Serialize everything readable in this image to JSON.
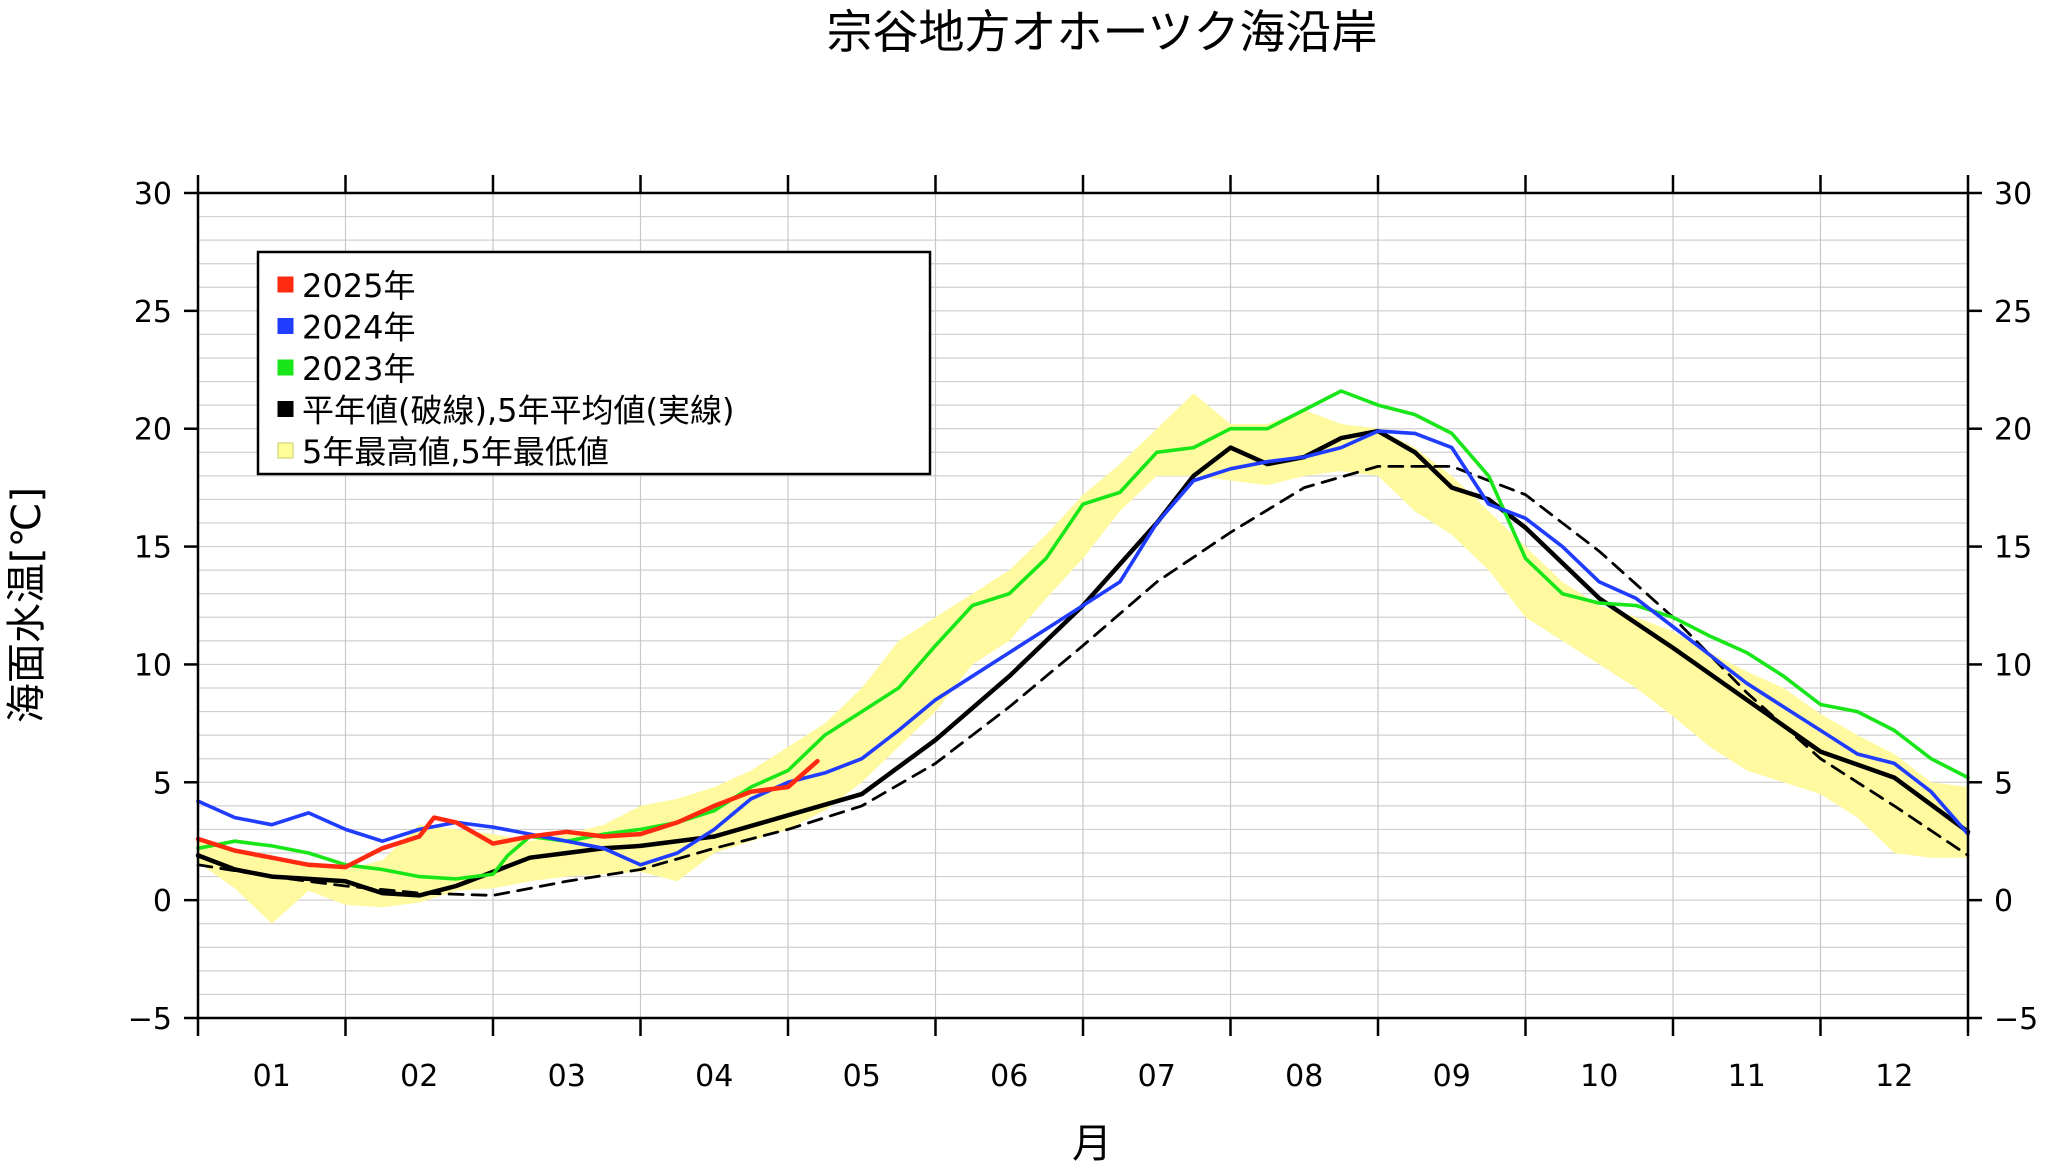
{
  "chart_data": {
    "type": "line",
    "title": "宗谷地方オホーツク海沿岸",
    "xlabel": "月",
    "ylabel": "海面水温[℃]",
    "ylim": [
      -5,
      30
    ],
    "y_ticks": [
      -5,
      0,
      5,
      10,
      15,
      20,
      25,
      30
    ],
    "y_tick_labels": [
      "−5",
      "0",
      "5",
      "10",
      "15",
      "20",
      "25",
      "30"
    ],
    "x_domain": [
      1,
      13
    ],
    "months": [
      "01",
      "02",
      "03",
      "04",
      "05",
      "06",
      "07",
      "08",
      "09",
      "10",
      "11",
      "12"
    ],
    "grid": true,
    "legend_position": "top-left",
    "legend": [
      {
        "label": "2025年",
        "color": "#ff2a10"
      },
      {
        "label": "2024年",
        "color": "#1f3cff"
      },
      {
        "label": "2023年",
        "color": "#19e619"
      },
      {
        "label": "平年値(破線),5年平均値(実線)",
        "color": "#000000"
      },
      {
        "label": "5年最高値,5年最低値",
        "color": "#ffff99"
      }
    ],
    "band": {
      "name": "5年最高値,5年最低値",
      "color": "#fffaa0",
      "x": [
        1.0,
        1.25,
        1.5,
        1.75,
        2.0,
        2.25,
        2.5,
        2.75,
        3.0,
        3.25,
        3.5,
        3.75,
        4.0,
        4.25,
        4.5,
        4.75,
        5.0,
        5.25,
        5.5,
        5.75,
        6.0,
        6.25,
        6.5,
        6.75,
        7.0,
        7.25,
        7.5,
        7.75,
        8.0,
        8.25,
        8.5,
        8.75,
        9.0,
        9.25,
        9.5,
        9.75,
        10.0,
        10.25,
        10.5,
        10.75,
        11.0,
        11.25,
        11.5,
        11.75,
        12.0,
        12.25,
        12.5,
        12.75,
        13.0
      ],
      "high": [
        2.6,
        2.0,
        1.8,
        1.6,
        1.3,
        1.7,
        3.2,
        3.0,
        2.8,
        2.5,
        2.8,
        3.2,
        4.0,
        4.3,
        4.8,
        5.5,
        6.5,
        7.5,
        9.0,
        11.0,
        12.0,
        13.0,
        14.0,
        15.5,
        17.2,
        18.5,
        20.0,
        21.5,
        20.2,
        20.2,
        20.8,
        20.2,
        20.0,
        19.2,
        18.0,
        16.5,
        15.0,
        13.5,
        12.5,
        12.0,
        11.4,
        10.5,
        9.7,
        9.0,
        7.9,
        7.0,
        6.2,
        5.0,
        4.8
      ],
      "low": [
        1.6,
        0.5,
        -1.0,
        0.4,
        -0.2,
        -0.3,
        -0.1,
        0.4,
        0.5,
        0.8,
        1.0,
        1.1,
        1.2,
        0.8,
        2.0,
        2.5,
        3.0,
        3.8,
        5.0,
        6.5,
        8.0,
        10.0,
        11.0,
        12.8,
        14.5,
        16.5,
        18.0,
        18.0,
        17.8,
        17.6,
        18.0,
        18.2,
        18.0,
        16.5,
        15.5,
        14.0,
        12.0,
        11.0,
        10.0,
        9.0,
        7.8,
        6.5,
        5.5,
        5.0,
        4.5,
        3.5,
        2.0,
        1.8,
        1.8
      ]
    },
    "series": [
      {
        "name": "平年値(破線)",
        "color": "#000000",
        "dash": true,
        "x": [
          1.0,
          1.5,
          2.0,
          2.5,
          3.0,
          3.5,
          4.0,
          4.5,
          5.0,
          5.5,
          6.0,
          6.5,
          7.0,
          7.5,
          8.0,
          8.5,
          9.0,
          9.5,
          10.0,
          10.5,
          11.0,
          11.5,
          12.0,
          12.5,
          13.0
        ],
        "y": [
          1.5,
          1.0,
          0.6,
          0.3,
          0.2,
          0.8,
          1.3,
          2.2,
          3.0,
          4.0,
          5.8,
          8.2,
          10.8,
          13.5,
          15.6,
          17.5,
          18.4,
          18.4,
          17.2,
          14.8,
          12.0,
          8.8,
          6.0,
          4.0,
          1.9
        ]
      },
      {
        "name": "5年平均値(実線)",
        "color": "#000000",
        "dash": false,
        "x": [
          1.0,
          1.25,
          1.5,
          1.75,
          2.0,
          2.25,
          2.5,
          2.75,
          3.0,
          3.25,
          3.5,
          3.75,
          4.0,
          4.5,
          5.0,
          5.5,
          6.0,
          6.5,
          7.0,
          7.5,
          7.75,
          8.0,
          8.25,
          8.5,
          8.75,
          9.0,
          9.25,
          9.5,
          9.75,
          10.0,
          10.5,
          11.0,
          11.5,
          12.0,
          12.5,
          13.0
        ],
        "y": [
          1.9,
          1.3,
          1.0,
          0.9,
          0.8,
          0.3,
          0.2,
          0.6,
          1.2,
          1.8,
          2.0,
          2.2,
          2.3,
          2.7,
          3.6,
          4.5,
          6.8,
          9.5,
          12.5,
          16.0,
          18.0,
          19.2,
          18.5,
          18.8,
          19.6,
          19.9,
          19.0,
          17.5,
          17.0,
          15.8,
          12.8,
          10.7,
          8.5,
          6.3,
          5.2,
          2.9
        ]
      },
      {
        "name": "2023年",
        "color": "#19e619",
        "dash": false,
        "x": [
          1.0,
          1.25,
          1.5,
          1.75,
          2.0,
          2.25,
          2.5,
          2.75,
          3.0,
          3.1,
          3.25,
          3.5,
          3.75,
          4.0,
          4.25,
          4.5,
          4.75,
          5.0,
          5.25,
          5.5,
          5.75,
          6.0,
          6.25,
          6.5,
          6.75,
          7.0,
          7.25,
          7.5,
          7.75,
          8.0,
          8.25,
          8.5,
          8.75,
          9.0,
          9.25,
          9.5,
          9.75,
          10.0,
          10.25,
          10.5,
          10.75,
          11.0,
          11.25,
          11.5,
          11.75,
          12.0,
          12.25,
          12.5,
          12.75,
          13.0
        ],
        "y": [
          2.2,
          2.5,
          2.3,
          2.0,
          1.5,
          1.3,
          1.0,
          0.9,
          1.1,
          1.9,
          2.7,
          2.5,
          2.8,
          3.0,
          3.3,
          3.8,
          4.8,
          5.5,
          7.0,
          8.0,
          9.0,
          10.8,
          12.5,
          13.0,
          14.5,
          16.8,
          17.3,
          19.0,
          19.2,
          20.0,
          20.0,
          20.8,
          21.6,
          21.0,
          20.6,
          19.8,
          18.0,
          14.5,
          13.0,
          12.6,
          12.5,
          12.0,
          11.2,
          10.5,
          9.5,
          8.3,
          8.0,
          7.2,
          6.0,
          5.2
        ]
      },
      {
        "name": "2024年",
        "color": "#1f3cff",
        "dash": false,
        "x": [
          1.0,
          1.25,
          1.5,
          1.75,
          2.0,
          2.25,
          2.5,
          2.75,
          3.0,
          3.25,
          3.5,
          3.75,
          4.0,
          4.25,
          4.5,
          4.75,
          5.0,
          5.25,
          5.5,
          5.75,
          6.0,
          6.25,
          6.5,
          6.75,
          7.0,
          7.25,
          7.5,
          7.75,
          8.0,
          8.25,
          8.5,
          8.75,
          9.0,
          9.25,
          9.5,
          9.75,
          10.0,
          10.25,
          10.5,
          10.75,
          11.0,
          11.25,
          11.5,
          11.75,
          12.0,
          12.25,
          12.5,
          12.75,
          13.0
        ],
        "y": [
          4.2,
          3.5,
          3.2,
          3.7,
          3.0,
          2.5,
          3.0,
          3.3,
          3.1,
          2.8,
          2.5,
          2.2,
          1.5,
          2.0,
          3.0,
          4.3,
          5.0,
          5.4,
          6.0,
          7.2,
          8.5,
          9.5,
          10.5,
          11.5,
          12.5,
          13.5,
          16.0,
          17.8,
          18.3,
          18.6,
          18.8,
          19.2,
          19.9,
          19.8,
          19.2,
          16.8,
          16.2,
          15.0,
          13.5,
          12.8,
          11.6,
          10.4,
          9.2,
          8.2,
          7.2,
          6.2,
          5.8,
          4.6,
          2.8
        ]
      },
      {
        "name": "2025年",
        "color": "#ff2a10",
        "dash": false,
        "x": [
          1.0,
          1.25,
          1.5,
          1.75,
          2.0,
          2.25,
          2.5,
          2.6,
          2.75,
          3.0,
          3.25,
          3.5,
          3.75,
          4.0,
          4.25,
          4.5,
          4.75,
          5.0,
          5.2
        ],
        "y": [
          2.6,
          2.1,
          1.8,
          1.5,
          1.4,
          2.2,
          2.7,
          3.5,
          3.3,
          2.4,
          2.7,
          2.9,
          2.7,
          2.8,
          3.3,
          4.0,
          4.6,
          4.8,
          5.9
        ]
      }
    ]
  }
}
